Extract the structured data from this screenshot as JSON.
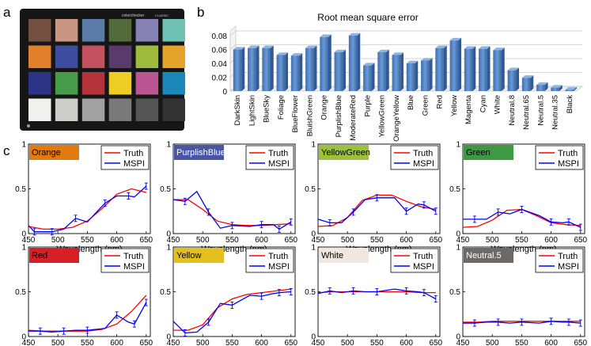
{
  "panel_labels": {
    "a": "a",
    "b": "b",
    "c": "c"
  },
  "checker": {
    "brand": "colorchecker",
    "brand_suffix": "CLASSIC",
    "swatch_colors": [
      "#73503f",
      "#c89582",
      "#5a7aa8",
      "#536a3b",
      "#8782b5",
      "#6fc2b3",
      "#e1802a",
      "#3d4ea0",
      "#c3515f",
      "#5a3a6b",
      "#9fbb3d",
      "#e6a42a",
      "#2c3487",
      "#479a4a",
      "#b3323c",
      "#edcc24",
      "#bb5693",
      "#1c87b9",
      "#f1f1ee",
      "#cccccb",
      "#a1a1a2",
      "#797979",
      "#555556",
      "#333334"
    ]
  },
  "chart_data": [
    {
      "type": "bar",
      "title": "Root mean square error",
      "categories": [
        "DarkSkin",
        "LightSkin",
        "BlueSky",
        "Foliage",
        "BlueFlower",
        "BluishGreen",
        "Orange",
        "PurplishBlue",
        "ModerateRed",
        "Purple",
        "YellowGreen",
        "OrangeYellow",
        "Blue",
        "Green",
        "Red",
        "Yellow",
        "Magenta",
        "Cyan",
        "White",
        "Neutral.8",
        "Neutral.65",
        "Neutral.5",
        "Neutral.35",
        "Black"
      ],
      "values": [
        0.06,
        0.062,
        0.062,
        0.052,
        0.051,
        0.062,
        0.078,
        0.056,
        0.08,
        0.037,
        0.056,
        0.052,
        0.04,
        0.044,
        0.062,
        0.073,
        0.061,
        0.061,
        0.059,
        0.03,
        0.019,
        0.009,
        0.005,
        0.002
      ],
      "ylim": [
        0,
        0.08
      ],
      "yticks": [
        0,
        0.02,
        0.04,
        0.06,
        0.08
      ],
      "ytick_labels": [
        "0",
        "0.02",
        "0.04",
        "0.06",
        "0.08"
      ],
      "bar_color": "#4f81bd"
    },
    {
      "type": "line",
      "sample": "Orange",
      "label_bg": "#e07b12",
      "label_fg": "#000000",
      "xlabel": "Wavelength (nm)",
      "ylim": [
        0,
        1
      ],
      "series": [
        {
          "name": "Truth",
          "color": "#ff0000",
          "x": [
            450,
            475,
            500,
            525,
            550,
            575,
            600,
            625,
            650
          ],
          "y": [
            0.08,
            0.05,
            0.05,
            0.07,
            0.14,
            0.28,
            0.44,
            0.5,
            0.46
          ]
        },
        {
          "name": "MSPI",
          "color": "#0000ff",
          "x": [
            450,
            460,
            470,
            490,
            510,
            530,
            550,
            580,
            600,
            620,
            630,
            650
          ],
          "y": [
            0.09,
            0.02,
            0.02,
            0.02,
            0.05,
            0.17,
            0.13,
            0.34,
            0.42,
            0.42,
            0.41,
            0.53
          ]
        }
      ]
    },
    {
      "type": "line",
      "sample": "PurplishBlue",
      "label_bg": "#4a55a4",
      "label_fg": "#ffffff",
      "xlabel": "Wavelength (nm)",
      "ylim": [
        0,
        1
      ],
      "series": [
        {
          "name": "Truth",
          "color": "#ff0000",
          "x": [
            450,
            475,
            500,
            525,
            550,
            575,
            600,
            625,
            650
          ],
          "y": [
            0.38,
            0.38,
            0.27,
            0.14,
            0.1,
            0.09,
            0.09,
            0.1,
            0.11
          ]
        },
        {
          "name": "MSPI",
          "color": "#0000ff",
          "x": [
            450,
            470,
            490,
            510,
            530,
            550,
            580,
            600,
            620,
            630,
            650
          ],
          "y": [
            0.38,
            0.36,
            0.47,
            0.24,
            0.06,
            0.09,
            0.08,
            0.1,
            0.1,
            0.05,
            0.13
          ]
        }
      ]
    },
    {
      "type": "line",
      "sample": "YellowGreen",
      "label_bg": "#9dc23a",
      "label_fg": "#000000",
      "xlabel": "Wavelength (nm)",
      "ylim": [
        0,
        1
      ],
      "series": [
        {
          "name": "Truth",
          "color": "#ff0000",
          "x": [
            450,
            475,
            500,
            525,
            550,
            575,
            600,
            625,
            650
          ],
          "y": [
            0.08,
            0.09,
            0.18,
            0.37,
            0.43,
            0.43,
            0.36,
            0.3,
            0.27
          ]
        },
        {
          "name": "MSPI",
          "color": "#0000ff",
          "x": [
            450,
            470,
            490,
            510,
            530,
            550,
            580,
            600,
            620,
            630,
            650
          ],
          "y": [
            0.16,
            0.12,
            0.12,
            0.24,
            0.38,
            0.4,
            0.4,
            0.25,
            0.33,
            0.32,
            0.25
          ]
        }
      ]
    },
    {
      "type": "line",
      "sample": "Green",
      "label_bg": "#3d9a43",
      "label_fg": "#000000",
      "xlabel": "Wavelength (nm)",
      "ylim": [
        0,
        1
      ],
      "series": [
        {
          "name": "Truth",
          "color": "#ff0000",
          "x": [
            450,
            475,
            500,
            525,
            550,
            575,
            600,
            625,
            650
          ],
          "y": [
            0.07,
            0.08,
            0.15,
            0.26,
            0.27,
            0.2,
            0.12,
            0.1,
            0.09
          ]
        },
        {
          "name": "MSPI",
          "color": "#0000ff",
          "x": [
            450,
            470,
            490,
            510,
            530,
            550,
            580,
            600,
            620,
            630,
            650
          ],
          "y": [
            0.16,
            0.16,
            0.16,
            0.24,
            0.22,
            0.27,
            0.2,
            0.13,
            0.12,
            0.13,
            0.07
          ]
        }
      ]
    },
    {
      "type": "line",
      "sample": "Red",
      "label_bg": "#d81f26",
      "label_fg": "#000000",
      "xlabel": "Wavelength (nm)",
      "ylim": [
        0,
        1
      ],
      "series": [
        {
          "name": "Truth",
          "color": "#ff0000",
          "x": [
            450,
            475,
            500,
            525,
            550,
            575,
            600,
            625,
            650
          ],
          "y": [
            0.07,
            0.06,
            0.06,
            0.06,
            0.06,
            0.08,
            0.14,
            0.28,
            0.46
          ]
        },
        {
          "name": "MSPI",
          "color": "#0000ff",
          "x": [
            450,
            470,
            490,
            510,
            530,
            550,
            580,
            600,
            620,
            630,
            650
          ],
          "y": [
            0.06,
            0.06,
            0.05,
            0.06,
            0.07,
            0.07,
            0.09,
            0.24,
            0.16,
            0.14,
            0.38
          ]
        }
      ]
    },
    {
      "type": "line",
      "sample": "Yellow",
      "label_bg": "#e3bf20",
      "label_fg": "#000000",
      "xlabel": "Wavelength (nm)",
      "ylim": [
        0,
        1
      ],
      "series": [
        {
          "name": "Truth",
          "color": "#ff0000",
          "x": [
            450,
            475,
            500,
            525,
            550,
            575,
            600,
            625,
            650
          ],
          "y": [
            0.07,
            0.07,
            0.13,
            0.32,
            0.42,
            0.47,
            0.49,
            0.51,
            0.53
          ]
        },
        {
          "name": "MSPI",
          "color": "#0000ff",
          "x": [
            450,
            470,
            490,
            510,
            530,
            550,
            580,
            600,
            620,
            630,
            650
          ],
          "y": [
            0.17,
            0.04,
            0.05,
            0.16,
            0.37,
            0.35,
            0.46,
            0.45,
            0.48,
            0.49,
            0.5
          ]
        }
      ]
    },
    {
      "type": "line",
      "sample": "White",
      "label_bg": "#f2e7df",
      "label_fg": "#000000",
      "xlabel": "Wavelength (nm)",
      "ylim": [
        0,
        1
      ],
      "series": [
        {
          "name": "Truth",
          "color": "#ff0000",
          "x": [
            450,
            475,
            500,
            525,
            550,
            575,
            600,
            625,
            650
          ],
          "y": [
            0.49,
            0.5,
            0.5,
            0.5,
            0.5,
            0.5,
            0.5,
            0.49,
            0.49
          ]
        },
        {
          "name": "MSPI",
          "color": "#0000ff",
          "x": [
            450,
            470,
            490,
            510,
            530,
            550,
            580,
            600,
            620,
            630,
            650
          ],
          "y": [
            0.48,
            0.51,
            0.49,
            0.51,
            0.5,
            0.5,
            0.53,
            0.51,
            0.5,
            0.49,
            0.42
          ]
        }
      ]
    },
    {
      "type": "line",
      "sample": "Neutral.5",
      "label_bg": "#6f6966",
      "label_fg": "#ffffff",
      "xlabel": "Wavelength (nm)",
      "ylim": [
        0,
        1
      ],
      "series": [
        {
          "name": "Truth",
          "color": "#ff0000",
          "x": [
            450,
            475,
            500,
            525,
            550,
            575,
            600,
            625,
            650
          ],
          "y": [
            0.16,
            0.16,
            0.17,
            0.17,
            0.17,
            0.17,
            0.17,
            0.17,
            0.17
          ]
        },
        {
          "name": "MSPI",
          "color": "#0000ff",
          "x": [
            450,
            470,
            490,
            510,
            530,
            550,
            580,
            600,
            620,
            630,
            650
          ],
          "y": [
            0.15,
            0.15,
            0.16,
            0.16,
            0.15,
            0.16,
            0.15,
            0.17,
            0.16,
            0.16,
            0.15
          ]
        }
      ]
    }
  ],
  "line_axes": {
    "xticks": [
      450,
      500,
      550,
      600,
      650
    ],
    "xtick_labels": [
      "450",
      "500",
      "550",
      "600",
      "650"
    ],
    "yticks": [
      0,
      0.5,
      1
    ],
    "ytick_labels": [
      "0",
      "0.5",
      "1"
    ]
  }
}
